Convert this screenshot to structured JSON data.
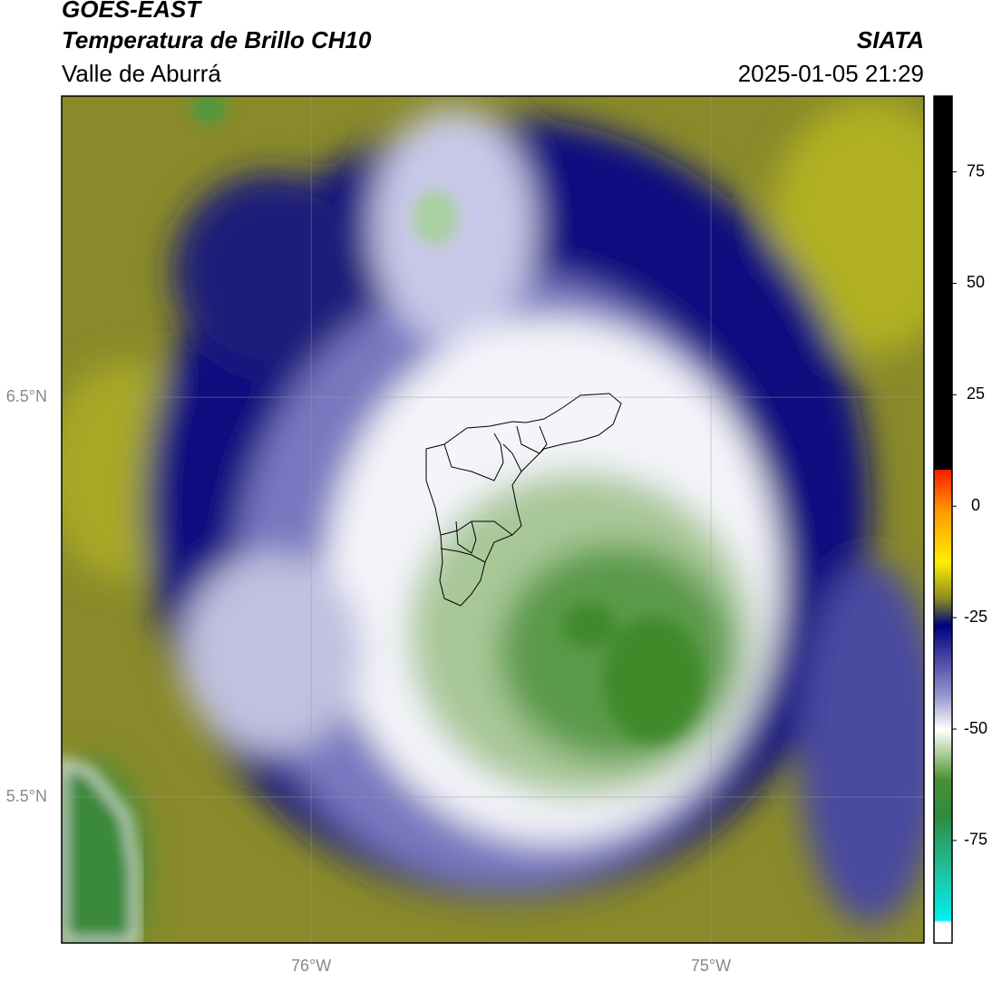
{
  "header": {
    "title": "GOES-EAST",
    "subtitle": "Temperatura de Brillo CH10",
    "region": "Valle de Aburrá",
    "source": "SIATA",
    "datetime": "2025-01-05 21:29"
  },
  "map": {
    "xlim": [
      -76.624,
      -74.467
    ],
    "ylim": [
      5.135,
      7.253
    ],
    "xticks": [
      {
        "value": -76,
        "label": "76°W"
      },
      {
        "value": -75,
        "label": "75°W"
      }
    ],
    "yticks": [
      {
        "value": 6.5,
        "label": "6.5°N"
      },
      {
        "value": 5.5,
        "label": "5.5°N"
      }
    ]
  },
  "colorbar": {
    "lim": [
      -98,
      92
    ],
    "ticks": [
      75,
      50,
      25,
      0,
      -25,
      -50,
      -75
    ]
  }
}
